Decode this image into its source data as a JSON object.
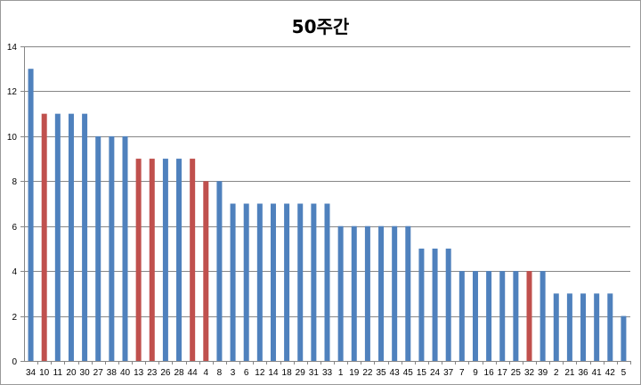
{
  "chart_data": {
    "type": "bar",
    "title": "50주간",
    "xlabel": "",
    "ylabel": "",
    "ylim": [
      0,
      14
    ],
    "yticks": [
      0,
      2,
      4,
      6,
      8,
      10,
      12,
      14
    ],
    "grid": true,
    "legend": "none",
    "colors": {
      "default": "#4f81bd",
      "highlight": "#c0504d",
      "grid": "#868686",
      "axis": "#868686"
    },
    "categories": [
      "34",
      "10",
      "11",
      "20",
      "30",
      "27",
      "38",
      "40",
      "13",
      "23",
      "26",
      "28",
      "44",
      "4",
      "8",
      "3",
      "6",
      "12",
      "14",
      "18",
      "29",
      "31",
      "33",
      "1",
      "19",
      "22",
      "35",
      "43",
      "45",
      "15",
      "24",
      "37",
      "7",
      "9",
      "16",
      "17",
      "25",
      "32",
      "39",
      "2",
      "21",
      "36",
      "41",
      "42",
      "5"
    ],
    "values": [
      13,
      11,
      11,
      11,
      11,
      10,
      10,
      10,
      9,
      9,
      9,
      9,
      9,
      8,
      8,
      7,
      7,
      7,
      7,
      7,
      7,
      7,
      7,
      6,
      6,
      6,
      6,
      6,
      6,
      5,
      5,
      5,
      4,
      4,
      4,
      4,
      4,
      4,
      4,
      3,
      3,
      3,
      3,
      3,
      2
    ],
    "highlighted_categories": [
      "10",
      "13",
      "23",
      "44",
      "4",
      "32"
    ]
  }
}
